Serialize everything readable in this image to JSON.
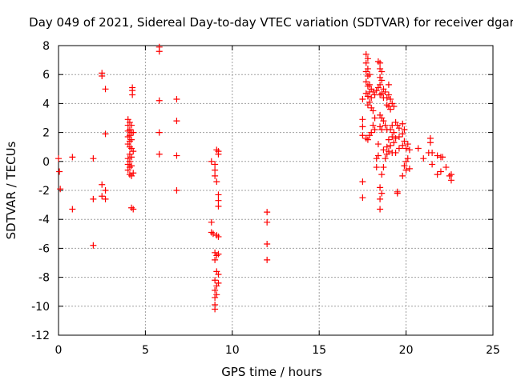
{
  "chart_data": {
    "type": "scatter",
    "title": "Day 049 of 2021, Sidereal Day-to-day VTEC variation (SDTVAR) for receiver dgar",
    "xlabel": "GPS time / hours",
    "ylabel": "SDTVAR / TECUs",
    "xlim": [
      0,
      25
    ],
    "ylim": [
      -12,
      8
    ],
    "x_ticks": [
      0,
      5,
      10,
      15,
      20,
      25
    ],
    "y_ticks": [
      -12,
      -10,
      -8,
      -6,
      -4,
      -2,
      0,
      2,
      4,
      6,
      8
    ],
    "grid": true,
    "marker": "+",
    "color": "#ff0000",
    "series": [
      {
        "name": "SDTVAR",
        "points": [
          [
            0.0,
            0.2
          ],
          [
            0.05,
            -0.7
          ],
          [
            0.1,
            -1.9
          ],
          [
            0.8,
            0.3
          ],
          [
            0.8,
            -3.3
          ],
          [
            2.0,
            0.2
          ],
          [
            2.0,
            -2.6
          ],
          [
            2.0,
            -5.8
          ],
          [
            2.5,
            6.1
          ],
          [
            2.5,
            5.9
          ],
          [
            2.5,
            -1.6
          ],
          [
            2.5,
            -2.4
          ],
          [
            2.7,
            5.0
          ],
          [
            2.7,
            1.9
          ],
          [
            2.7,
            -2.0
          ],
          [
            2.7,
            -2.6
          ],
          [
            4.0,
            2.9
          ],
          [
            4.0,
            2.5
          ],
          [
            4.0,
            2.1
          ],
          [
            4.0,
            1.7
          ],
          [
            4.0,
            1.2
          ],
          [
            4.0,
            0.2
          ],
          [
            4.0,
            -0.2
          ],
          [
            4.0,
            -0.6
          ],
          [
            4.1,
            2.7
          ],
          [
            4.1,
            2.2
          ],
          [
            4.1,
            1.8
          ],
          [
            4.1,
            1.4
          ],
          [
            4.1,
            1.0
          ],
          [
            4.1,
            0.5
          ],
          [
            4.1,
            0.0
          ],
          [
            4.1,
            -0.4
          ],
          [
            4.1,
            -0.9
          ],
          [
            4.2,
            2.5
          ],
          [
            4.2,
            2.0
          ],
          [
            4.2,
            1.5
          ],
          [
            4.2,
            0.9
          ],
          [
            4.2,
            0.3
          ],
          [
            4.2,
            -0.3
          ],
          [
            4.2,
            -1.0
          ],
          [
            4.2,
            -3.2
          ],
          [
            4.25,
            5.1
          ],
          [
            4.25,
            4.9
          ],
          [
            4.25,
            4.6
          ],
          [
            4.3,
            2.0
          ],
          [
            4.3,
            0.7
          ],
          [
            4.3,
            -0.8
          ],
          [
            4.3,
            -3.3
          ],
          [
            5.8,
            7.9
          ],
          [
            5.8,
            7.6
          ],
          [
            5.8,
            4.2
          ],
          [
            5.8,
            2.0
          ],
          [
            5.8,
            0.5
          ],
          [
            6.8,
            4.3
          ],
          [
            6.8,
            2.8
          ],
          [
            6.8,
            0.4
          ],
          [
            6.8,
            -2.0
          ],
          [
            8.8,
            0.0
          ],
          [
            8.8,
            -4.2
          ],
          [
            8.8,
            -4.9
          ],
          [
            8.9,
            -5.0
          ],
          [
            9.0,
            -0.2
          ],
          [
            9.0,
            -0.6
          ],
          [
            9.0,
            -1.0
          ],
          [
            9.0,
            -6.3
          ],
          [
            9.0,
            -6.8
          ],
          [
            9.0,
            -8.2
          ],
          [
            9.0,
            -8.9
          ],
          [
            9.0,
            -9.4
          ],
          [
            9.0,
            -9.9
          ],
          [
            9.0,
            -10.2
          ],
          [
            9.1,
            0.8
          ],
          [
            9.1,
            -1.4
          ],
          [
            9.1,
            -5.1
          ],
          [
            9.1,
            -6.5
          ],
          [
            9.1,
            -7.6
          ],
          [
            9.1,
            -8.6
          ],
          [
            9.1,
            -9.2
          ],
          [
            9.2,
            0.7
          ],
          [
            9.2,
            0.5
          ],
          [
            9.2,
            -2.3
          ],
          [
            9.2,
            -2.7
          ],
          [
            9.2,
            -3.1
          ],
          [
            9.2,
            -5.2
          ],
          [
            9.2,
            -6.4
          ],
          [
            9.2,
            -7.8
          ],
          [
            9.2,
            -8.4
          ],
          [
            12.0,
            -3.5
          ],
          [
            12.0,
            -4.2
          ],
          [
            12.0,
            -5.7
          ],
          [
            12.0,
            -6.8
          ],
          [
            17.5,
            2.9
          ],
          [
            17.5,
            2.4
          ],
          [
            17.5,
            1.8
          ],
          [
            17.5,
            4.3
          ],
          [
            17.5,
            -1.4
          ],
          [
            17.5,
            -2.5
          ],
          [
            17.7,
            7.4
          ],
          [
            17.7,
            6.8
          ],
          [
            17.7,
            6.2
          ],
          [
            17.7,
            5.5
          ],
          [
            17.7,
            4.7
          ],
          [
            17.7,
            1.6
          ],
          [
            17.8,
            7.1
          ],
          [
            17.8,
            6.4
          ],
          [
            17.8,
            5.9
          ],
          [
            17.8,
            5.2
          ],
          [
            17.8,
            4.5
          ],
          [
            17.8,
            3.9
          ],
          [
            17.8,
            1.5
          ],
          [
            17.9,
            6.0
          ],
          [
            17.9,
            5.3
          ],
          [
            17.9,
            4.8
          ],
          [
            17.9,
            4.1
          ],
          [
            17.9,
            1.8
          ],
          [
            18.0,
            5.0
          ],
          [
            18.0,
            4.4
          ],
          [
            18.0,
            3.7
          ],
          [
            18.0,
            2.0
          ],
          [
            18.1,
            4.8
          ],
          [
            18.1,
            3.5
          ],
          [
            18.1,
            2.5
          ],
          [
            18.2,
            4.6
          ],
          [
            18.2,
            3.0
          ],
          [
            18.2,
            2.2
          ],
          [
            18.3,
            4.9
          ],
          [
            18.3,
            0.2
          ],
          [
            18.3,
            -0.4
          ],
          [
            18.4,
            5.1
          ],
          [
            18.4,
            1.2
          ],
          [
            18.4,
            0.4
          ],
          [
            18.4,
            6.9
          ],
          [
            18.5,
            6.8
          ],
          [
            18.5,
            6.4
          ],
          [
            18.5,
            5.8
          ],
          [
            18.5,
            5.3
          ],
          [
            18.5,
            4.6
          ],
          [
            18.5,
            3.2
          ],
          [
            18.5,
            2.4
          ],
          [
            18.5,
            -1.8
          ],
          [
            18.5,
            -2.6
          ],
          [
            18.5,
            -3.3
          ],
          [
            18.6,
            6.2
          ],
          [
            18.6,
            5.6
          ],
          [
            18.6,
            4.7
          ],
          [
            18.6,
            3.0
          ],
          [
            18.6,
            2.2
          ],
          [
            18.6,
            -0.9
          ],
          [
            18.6,
            -2.2
          ],
          [
            18.7,
            5.0
          ],
          [
            18.7,
            4.4
          ],
          [
            18.7,
            2.8
          ],
          [
            18.7,
            0.8
          ],
          [
            18.7,
            -0.4
          ],
          [
            18.8,
            4.8
          ],
          [
            18.8,
            2.5
          ],
          [
            18.8,
            0.2
          ],
          [
            18.9,
            4.4
          ],
          [
            18.9,
            3.9
          ],
          [
            18.9,
            2.2
          ],
          [
            18.9,
            1.0
          ],
          [
            18.9,
            0.5
          ],
          [
            19.0,
            5.3
          ],
          [
            19.0,
            4.6
          ],
          [
            19.0,
            3.8
          ],
          [
            19.0,
            1.5
          ],
          [
            19.0,
            0.7
          ],
          [
            19.1,
            4.3
          ],
          [
            19.1,
            3.6
          ],
          [
            19.1,
            2.2
          ],
          [
            19.1,
            1.1
          ],
          [
            19.2,
            4.0
          ],
          [
            19.2,
            2.5
          ],
          [
            19.2,
            1.7
          ],
          [
            19.2,
            0.6
          ],
          [
            19.3,
            3.8
          ],
          [
            19.3,
            2.0
          ],
          [
            19.3,
            1.3
          ],
          [
            19.4,
            2.7
          ],
          [
            19.4,
            1.6
          ],
          [
            19.4,
            0.6
          ],
          [
            19.5,
            2.5
          ],
          [
            19.5,
            -2.1
          ],
          [
            19.5,
            -2.2
          ],
          [
            19.6,
            2.3
          ],
          [
            19.6,
            1.7
          ],
          [
            19.6,
            0.9
          ],
          [
            19.8,
            2.6
          ],
          [
            19.8,
            1.9
          ],
          [
            19.8,
            1.1
          ],
          [
            19.8,
            -1.0
          ],
          [
            19.9,
            2.2
          ],
          [
            19.9,
            1.4
          ],
          [
            19.9,
            -0.3
          ],
          [
            20.0,
            0.9
          ],
          [
            20.0,
            0.0
          ],
          [
            20.0,
            -0.6
          ],
          [
            20.1,
            1.2
          ],
          [
            20.1,
            0.2
          ],
          [
            20.2,
            0.8
          ],
          [
            20.2,
            -0.5
          ],
          [
            20.7,
            0.9
          ],
          [
            21.0,
            0.2
          ],
          [
            21.3,
            0.6
          ],
          [
            21.4,
            1.6
          ],
          [
            21.4,
            1.3
          ],
          [
            21.5,
            0.6
          ],
          [
            21.5,
            -0.2
          ],
          [
            21.8,
            0.4
          ],
          [
            21.8,
            -0.9
          ],
          [
            22.0,
            0.3
          ],
          [
            22.0,
            -0.7
          ],
          [
            22.1,
            0.3
          ],
          [
            22.3,
            -0.4
          ],
          [
            22.5,
            -1.0
          ],
          [
            22.6,
            -1.3
          ],
          [
            22.6,
            -0.9
          ]
        ]
      }
    ]
  }
}
